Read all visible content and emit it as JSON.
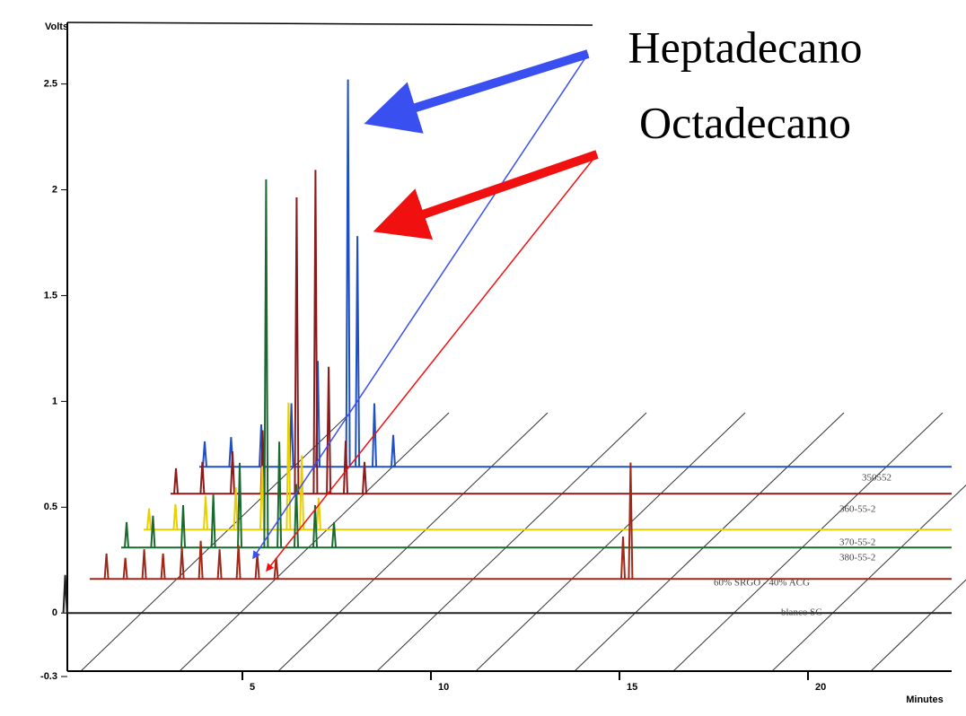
{
  "chart_data": {
    "type": "chromatogram",
    "ylabel": "Volts",
    "xlabel": "Minutes",
    "ylim": [
      -0.3,
      2.6
    ],
    "yticks": [
      -0.3,
      0.0,
      0.5,
      1.0,
      1.5,
      2.0,
      2.5
    ],
    "xlim": [
      0,
      24
    ],
    "xticks": [
      5,
      10,
      15,
      20
    ],
    "annotations": [
      {
        "text": "Heptadecano",
        "color": "#3a4ff0"
      },
      {
        "text": "Octadecano",
        "color": "#f01010"
      }
    ],
    "series": [
      {
        "name": "blanco SC",
        "color": "#222222",
        "x": [
          0.3
        ],
        "values": [
          0.18
        ]
      },
      {
        "name": "60% SRGO - 40% ACG",
        "color": "#a02818",
        "x": [
          0.8,
          1.3,
          1.8,
          2.3,
          2.8,
          3.3,
          3.8,
          4.3,
          4.8,
          5.3,
          14.5,
          14.7
        ],
        "values": [
          0.12,
          0.1,
          0.14,
          0.12,
          0.15,
          0.18,
          0.14,
          0.16,
          0.12,
          0.1,
          0.2,
          0.55
        ]
      },
      {
        "name": "380-55-2",
        "color": "#1a6a30",
        "x": [
          0.5,
          1.2,
          2.0,
          2.8,
          3.5,
          4.2,
          4.55,
          5.0,
          5.5,
          6.0
        ],
        "values": [
          0.12,
          0.15,
          0.2,
          0.25,
          0.4,
          1.74,
          0.5,
          0.3,
          0.2,
          0.12
        ]
      },
      {
        "name": "370-55-2",
        "color": "#e8d000",
        "x": [
          0.5,
          1.2,
          2.0,
          2.8,
          3.5,
          4.2,
          4.55,
          5.0
        ],
        "values": [
          0.1,
          0.12,
          0.16,
          0.2,
          0.3,
          0.6,
          0.35,
          0.15
        ]
      },
      {
        "name": "360-55-2",
        "color": "#8b1a1a",
        "x": [
          0.5,
          1.2,
          2.0,
          2.8,
          3.7,
          4.2,
          4.55,
          5.0,
          5.5
        ],
        "values": [
          0.12,
          0.15,
          0.2,
          0.3,
          1.4,
          1.53,
          0.6,
          0.25,
          0.15
        ]
      },
      {
        "name": "350552",
        "color": "#2050c0",
        "x": [
          0.5,
          1.2,
          2.0,
          2.8,
          3.5,
          4.3,
          4.55,
          5.0,
          5.5
        ],
        "values": [
          0.12,
          0.14,
          0.2,
          0.3,
          0.5,
          1.83,
          1.09,
          0.3,
          0.15
        ]
      }
    ]
  }
}
